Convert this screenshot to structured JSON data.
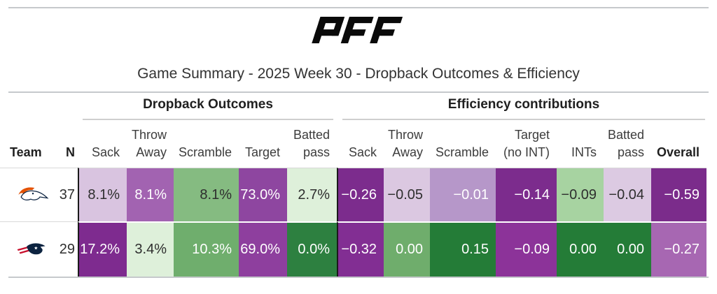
{
  "header": {
    "brand": "PFF",
    "title": "Game Summary - 2025 Week 30 - Dropback Outcomes & Efficiency"
  },
  "table": {
    "group_headers": [
      "Dropback Outcomes",
      "Efficiency contributions"
    ],
    "columns": [
      {
        "key": "team",
        "label": "Team"
      },
      {
        "key": "n",
        "label": "N"
      },
      {
        "key": "sack_pct",
        "label": "Sack"
      },
      {
        "key": "throw_away_pct",
        "label": "Throw\nAway"
      },
      {
        "key": "scramble_pct",
        "label": "Scramble"
      },
      {
        "key": "target_pct",
        "label": "Target"
      },
      {
        "key": "batted_pass_pct",
        "label": "Batted\npass"
      },
      {
        "key": "sack_eff",
        "label": "Sack"
      },
      {
        "key": "throw_away_eff",
        "label": "Throw\nAway"
      },
      {
        "key": "scramble_eff",
        "label": "Scramble"
      },
      {
        "key": "target_no_int_eff",
        "label": "Target\n(no INT)"
      },
      {
        "key": "ints_eff",
        "label": "INTs"
      },
      {
        "key": "batted_pass_eff",
        "label": "Batted\npass"
      },
      {
        "key": "overall_eff",
        "label": "Overall"
      }
    ],
    "rows": [
      {
        "team": "Denver Broncos",
        "n": "37",
        "cells": [
          {
            "value": "8.1%",
            "bg": "#d9c4e0",
            "fg": "#2e2e2e"
          },
          {
            "value": "8.1%",
            "bg": "#a263b1",
            "fg": "#ffffff"
          },
          {
            "value": "8.1%",
            "bg": "#85bb81",
            "fg": "#2e2e2e"
          },
          {
            "value": "73.0%",
            "bg": "#8e46a0",
            "fg": "#ffffff"
          },
          {
            "value": "2.7%",
            "bg": "#def0da",
            "fg": "#2e2e2e"
          },
          {
            "value": "−0.26",
            "bg": "#7c2c8d",
            "fg": "#ffffff"
          },
          {
            "value": "−0.05",
            "bg": "#dbc8e1",
            "fg": "#2e2e2e"
          },
          {
            "value": "−0.01",
            "bg": "#b697c9",
            "fg": "#ffffff"
          },
          {
            "value": "−0.14",
            "bg": "#7c2c8d",
            "fg": "#ffffff"
          },
          {
            "value": "−0.09",
            "bg": "#a7d3a1",
            "fg": "#2e2e2e"
          },
          {
            "value": "−0.04",
            "bg": "#dccae2",
            "fg": "#2e2e2e"
          },
          {
            "value": "−0.59",
            "bg": "#7b2c8b",
            "fg": "#ffffff"
          }
        ]
      },
      {
        "team": "New England Patriots",
        "n": "29",
        "cells": [
          {
            "value": "17.2%",
            "bg": "#7e2b8f",
            "fg": "#ffffff"
          },
          {
            "value": "3.4%",
            "bg": "#def0da",
            "fg": "#2e2e2e"
          },
          {
            "value": "10.3%",
            "bg": "#6fae6d",
            "fg": "#ffffff"
          },
          {
            "value": "69.0%",
            "bg": "#8e3f9e",
            "fg": "#ffffff"
          },
          {
            "value": "0.0%",
            "bg": "#2d8040",
            "fg": "#ffffff"
          },
          {
            "value": "−0.32",
            "bg": "#822e93",
            "fg": "#ffffff"
          },
          {
            "value": "0.00",
            "bg": "#6fad6c",
            "fg": "#ffffff"
          },
          {
            "value": "0.15",
            "bg": "#247c37",
            "fg": "#ffffff"
          },
          {
            "value": "−0.09",
            "bg": "#8c3399",
            "fg": "#ffffff"
          },
          {
            "value": "0.00",
            "bg": "#247c37",
            "fg": "#ffffff"
          },
          {
            "value": "0.00",
            "bg": "#247c37",
            "fg": "#ffffff"
          },
          {
            "value": "−0.27",
            "bg": "#a767b2",
            "fg": "#ffffff"
          }
        ]
      }
    ]
  },
  "chart_data": {
    "type": "table",
    "title": "Game Summary - 2025 Week 30 - Dropback Outcomes & Efficiency",
    "column_groups": [
      "Dropback Outcomes",
      "Efficiency contributions"
    ],
    "columns": [
      "Team",
      "N",
      "Sack",
      "Throw Away",
      "Scramble",
      "Target",
      "Batted pass",
      "Sack",
      "Throw Away",
      "Scramble",
      "Target (no INT)",
      "INTs",
      "Batted pass",
      "Overall"
    ],
    "rows": [
      {
        "team": "Denver Broncos",
        "n": 37,
        "dropback_outcomes": {
          "sack_pct": 8.1,
          "throw_away_pct": 8.1,
          "scramble_pct": 8.1,
          "target_pct": 73.0,
          "batted_pass_pct": 2.7
        },
        "efficiency_contributions": {
          "sack": -0.26,
          "throw_away": -0.05,
          "scramble": -0.01,
          "target_no_int": -0.14,
          "ints": -0.09,
          "batted_pass": -0.04,
          "overall": -0.59
        }
      },
      {
        "team": "New England Patriots",
        "n": 29,
        "dropback_outcomes": {
          "sack_pct": 17.2,
          "throw_away_pct": 3.4,
          "scramble_pct": 10.3,
          "target_pct": 69.0,
          "batted_pass_pct": 0.0
        },
        "efficiency_contributions": {
          "sack": -0.32,
          "throw_away": 0.0,
          "scramble": 0.15,
          "target_no_int": -0.09,
          "ints": 0.0,
          "batted_pass": 0.0,
          "overall": -0.27
        }
      }
    ],
    "legend": "cell shading: purple = negative/worse, green = positive/better",
    "colors": {
      "negative_dark": "#7c2c8d",
      "negative_light": "#dbc8e1",
      "positive_dark": "#247c37",
      "positive_light": "#def0da"
    }
  }
}
